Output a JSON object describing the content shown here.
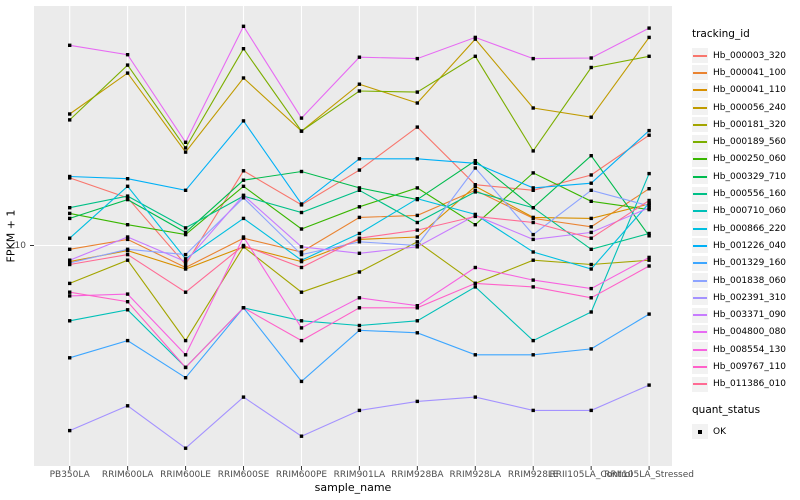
{
  "figure": {
    "background": "#FFFFFF",
    "panel_background": "#EBEBEB",
    "grid_color": "#FFFFFF",
    "tick_color": "#333333",
    "point_color": "#000000"
  },
  "axes": {
    "x_title": "sample_name",
    "y_title": "FPKM + 1",
    "y_tick_labels": [
      "10"
    ]
  },
  "legend": {
    "tracking_title": "tracking_id",
    "quant_title": "quant_status",
    "quant_items": [
      {
        "label": "OK"
      }
    ]
  },
  "chart_data": {
    "type": "line",
    "title": "",
    "xlabel": "sample_name",
    "ylabel": "FPKM + 1",
    "y_scale": "log10",
    "y_ticks": [
      10
    ],
    "ylim_approx": [
      1.9,
      65
    ],
    "grid": "major-on-white",
    "legend_position": "right",
    "point_marker": "black-square",
    "quant_status": "OK",
    "categories": [
      "PB350LA",
      "RRIM600LA",
      "RRIM600LE",
      "RRIM600SE",
      "RRIM600PE",
      "RRIM901LA",
      "RRIM928BA",
      "RRIM928LA",
      "RRIM928LE",
      "RRII105LA_Control",
      "RRII105LA_Stressed"
    ],
    "series": [
      {
        "name": "Hb_000003_320",
        "color": "#F8766D",
        "values": [
          17.1,
          14.6,
          8.6,
          18.1,
          13.8,
          18.2,
          25.6,
          16.2,
          15.5,
          17.5,
          24.0
        ]
      },
      {
        "name": "Hb_000041_100",
        "color": "#EA8331",
        "values": [
          9.7,
          10.5,
          8.4,
          10.6,
          9.5,
          12.5,
          12.7,
          15.5,
          12.4,
          11.6,
          15.7
        ]
      },
      {
        "name": "Hb_000041_110",
        "color": "#D89000",
        "values": [
          8.8,
          9.6,
          8.3,
          9.9,
          8.8,
          10.5,
          10.7,
          16.0,
          12.5,
          12.4,
          13.9
        ]
      },
      {
        "name": "Hb_000056_240",
        "color": "#C09B00",
        "values": [
          28.4,
          39.3,
          21.0,
          37.8,
          24.8,
          36.0,
          31.0,
          51.5,
          29.8,
          27.7,
          52.2
        ]
      },
      {
        "name": "Hb_000181_320",
        "color": "#A3A500",
        "values": [
          7.4,
          8.9,
          4.7,
          9.9,
          6.9,
          8.1,
          10.3,
          7.4,
          8.9,
          8.6,
          8.9
        ]
      },
      {
        "name": "Hb_000189_560",
        "color": "#7CAE00",
        "values": [
          27.1,
          41.9,
          21.7,
          47.7,
          24.8,
          34.1,
          33.8,
          44.9,
          21.2,
          41.1,
          44.9
        ]
      },
      {
        "name": "Hb_000250_060",
        "color": "#39B600",
        "values": [
          12.9,
          11.8,
          10.9,
          16.0,
          11.4,
          13.6,
          15.8,
          11.8,
          17.8,
          14.2,
          13.3
        ]
      },
      {
        "name": "Hb_000329_710",
        "color": "#00BB4E",
        "values": [
          12.4,
          14.4,
          11.1,
          16.8,
          18.0,
          15.8,
          14.4,
          19.6,
          13.5,
          20.4,
          10.8
        ]
      },
      {
        "name": "Hb_000556_160",
        "color": "#00C087",
        "values": [
          13.5,
          14.8,
          11.5,
          14.8,
          13.0,
          15.5,
          12.0,
          15.3,
          13.5,
          9.7,
          11.0
        ]
      },
      {
        "name": "Hb_000710_060",
        "color": "#00C0B8",
        "values": [
          5.5,
          6.0,
          3.8,
          6.1,
          5.5,
          5.3,
          5.5,
          7.2,
          4.7,
          5.9,
          17.7
        ]
      },
      {
        "name": "Hb_000866_220",
        "color": "#00BFE0",
        "values": [
          10.6,
          16.0,
          9.0,
          12.4,
          8.9,
          11.0,
          14.5,
          12.8,
          9.5,
          8.3,
          14.0
        ]
      },
      {
        "name": "Hb_001226_040",
        "color": "#00B0F6",
        "values": [
          17.3,
          17.0,
          15.5,
          26.9,
          13.9,
          19.9,
          19.9,
          19.2,
          15.8,
          16.4,
          24.9
        ]
      },
      {
        "name": "Hb_001329_160",
        "color": "#3DA6FF",
        "values": [
          4.1,
          4.7,
          3.5,
          6.1,
          3.4,
          5.1,
          5.0,
          4.2,
          4.2,
          4.4,
          5.8
        ]
      },
      {
        "name": "Hb_001838_060",
        "color": "#8CA3FF",
        "values": [
          8.7,
          9.7,
          9.3,
          14.6,
          9.3,
          10.3,
          10.0,
          18.5,
          10.9,
          15.5,
          13.7
        ]
      },
      {
        "name": "Hb_002391_310",
        "color": "#A492FF",
        "values": [
          2.3,
          2.8,
          2.0,
          3.0,
          2.2,
          2.7,
          2.9,
          3.0,
          2.7,
          2.7,
          3.3
        ]
      },
      {
        "name": "Hb_003371_090",
        "color": "#C77CFF",
        "values": [
          8.9,
          10.7,
          8.8,
          14.9,
          9.9,
          9.4,
          9.9,
          12.7,
          10.5,
          11.1,
          13.5
        ]
      },
      {
        "name": "Hb_004800_080",
        "color": "#E76BF3",
        "values": [
          49.0,
          45.5,
          22.7,
          57.0,
          27.5,
          44.6,
          44.1,
          52.2,
          44.1,
          44.3,
          56.2
        ]
      },
      {
        "name": "Hb_008554_130",
        "color": "#F763E0",
        "values": [
          6.7,
          6.8,
          4.2,
          10.7,
          5.2,
          6.6,
          6.2,
          8.4,
          7.6,
          7.1,
          9.1
        ]
      },
      {
        "name": "Hb_009767_110",
        "color": "#FF61C9",
        "values": [
          6.9,
          6.4,
          3.8,
          6.1,
          4.7,
          6.1,
          6.1,
          7.4,
          7.2,
          6.6,
          8.5
        ]
      },
      {
        "name": "Hb_011386_010",
        "color": "#FF6B94",
        "values": [
          8.6,
          9.3,
          6.9,
          10.0,
          8.4,
          10.6,
          11.3,
          12.6,
          12.0,
          10.6,
          14.3
        ]
      }
    ]
  }
}
